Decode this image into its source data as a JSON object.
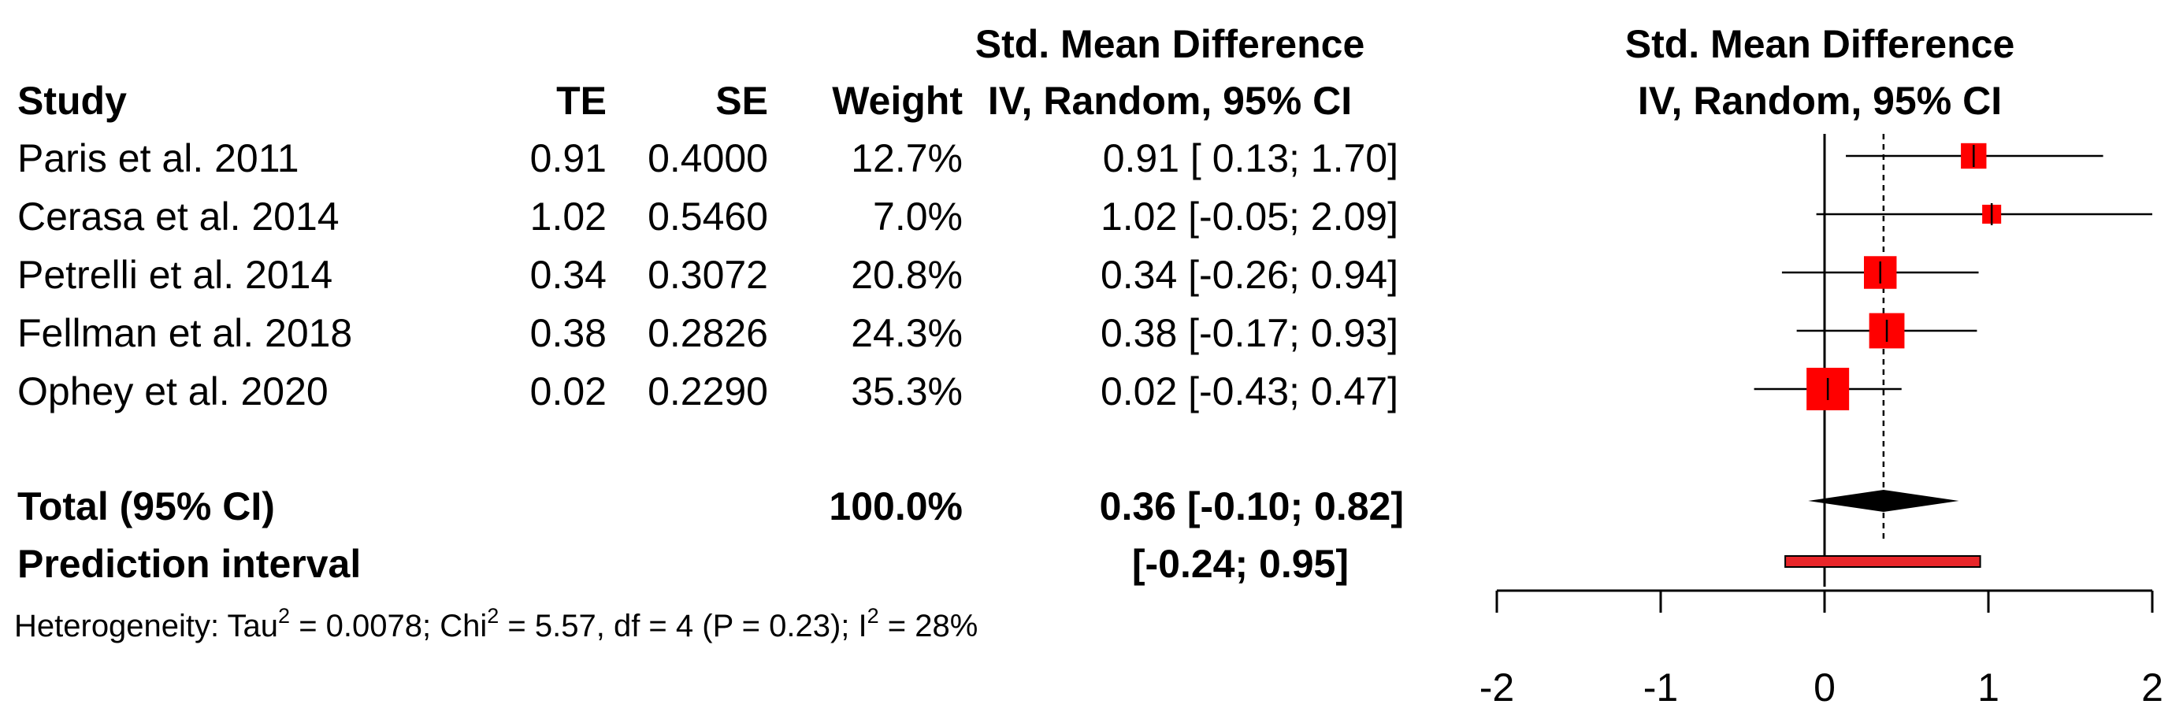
{
  "chart_data": {
    "type": "forest",
    "columns": {
      "study": "Study",
      "te": "TE",
      "se": "SE",
      "weight": "Weight",
      "ci_line1": "Std. Mean Difference",
      "ci_line2": "IV, Random, 95% CI"
    },
    "plot_header": {
      "line1": "Std. Mean Difference",
      "line2": "IV, Random, 95% CI"
    },
    "studies": [
      {
        "study": "Paris et al. 2011",
        "te_text": "0.91",
        "se_text": "0.4000",
        "weight_text": "12.7%",
        "ci_text": "0.91 [ 0.13; 1.70]",
        "effect": 0.91,
        "lower": 0.13,
        "upper": 1.7,
        "weight": 12.7
      },
      {
        "study": "Cerasa et al. 2014",
        "te_text": "1.02",
        "se_text": "0.5460",
        "weight_text": "7.0%",
        "ci_text": "1.02 [-0.05; 2.09]",
        "effect": 1.02,
        "lower": -0.05,
        "upper": 2.09,
        "weight": 7.0
      },
      {
        "study": "Petrelli et al. 2014",
        "te_text": "0.34",
        "se_text": "0.3072",
        "weight_text": "20.8%",
        "ci_text": "0.34 [-0.26; 0.94]",
        "effect": 0.34,
        "lower": -0.26,
        "upper": 0.94,
        "weight": 20.8
      },
      {
        "study": "Fellman et al. 2018",
        "te_text": "0.38",
        "se_text": "0.2826",
        "weight_text": "24.3%",
        "ci_text": "0.38 [-0.17; 0.93]",
        "effect": 0.38,
        "lower": -0.17,
        "upper": 0.93,
        "weight": 24.3
      },
      {
        "study": "Ophey et al. 2020",
        "te_text": "0.02",
        "se_text": "0.2290",
        "weight_text": "35.3%",
        "ci_text": "0.02 [-0.43; 0.47]",
        "effect": 0.02,
        "lower": -0.43,
        "upper": 0.47,
        "weight": 35.3
      }
    ],
    "total": {
      "label": "Total (95% CI)",
      "weight_text": "100.0%",
      "ci_text": "0.36 [-0.10; 0.82]",
      "effect": 0.36,
      "lower": -0.1,
      "upper": 0.82
    },
    "prediction": {
      "label": "Prediction interval",
      "ci_text": "[-0.24; 0.95]",
      "lower": -0.24,
      "upper": 0.95
    },
    "heterogeneity": {
      "tau_label": "Heterogeneity: Tau",
      "tau_sup": "2",
      "tau_value": " = 0.0078; Chi",
      "chi_sup": "2",
      "chi_rest": " = 5.57, df = 4 (P = 0.23); I",
      "i_sup": "2",
      "i_rest": " = 28%"
    },
    "x_ticks": [
      "-2",
      "-1",
      "0",
      "1",
      "2"
    ],
    "x_range": [
      -2,
      2
    ],
    "reference_line": 0,
    "pooled_dashed_line": 0.36,
    "colors": {
      "box": "#ff0000",
      "prediction_fill": "#e8262a",
      "lines": "#000000"
    }
  }
}
